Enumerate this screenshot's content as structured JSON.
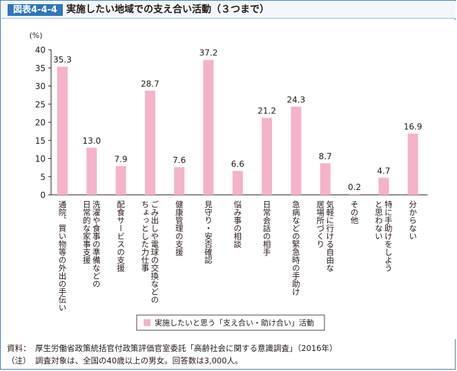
{
  "header": {
    "figure_number": "図表4-4-4",
    "title": "実施したい地域での支え合い活動（３つまで）"
  },
  "chart_data": {
    "type": "bar",
    "ylabel": "(%)",
    "ylim": [
      0,
      40
    ],
    "yticks": [
      0,
      5,
      10,
      15,
      20,
      25,
      30,
      35,
      40
    ],
    "grid": false,
    "legend_position": "bottom-center",
    "categories": [
      "通院、買い物等の外出の手伝い",
      "洗濯や食事の準備などの日常的な家事支援",
      "配食サービスの支援",
      "ごみ出しや電球の交換などのちょっとした力仕事",
      "健康管理の支援",
      "見守り・安否確認",
      "悩み事の相談",
      "日常会話の相手",
      "急病などの緊急時の手助け",
      "気軽に行ける自由な居場所づくり",
      "その他",
      "特に手助けをしようと思わない",
      "分からない"
    ],
    "category_lines": [
      [
        "通院、買い物等の外出の手伝い"
      ],
      [
        "洗濯や食事の準備などの",
        "日常的な家事支援"
      ],
      [
        "配食サービスの支援"
      ],
      [
        "ごみ出しや電球の交換などの",
        "ちょっとした力仕事"
      ],
      [
        "健康管理の支援"
      ],
      [
        "見守り・安否確認"
      ],
      [
        "悩み事の相談"
      ],
      [
        "日常会話の相手"
      ],
      [
        "急病などの緊急時の手助け"
      ],
      [
        "気軽に行ける自由な",
        "居場所づくり"
      ],
      [
        "その他"
      ],
      [
        "特に手助けをしよう",
        "と思わない"
      ],
      [
        "分からない"
      ]
    ],
    "series": [
      {
        "name": "実施したいと思う「支え合い・助け合い」活動",
        "color": "#f5b2cb",
        "values": [
          35.3,
          13.0,
          7.9,
          28.7,
          7.6,
          37.2,
          6.6,
          21.2,
          24.3,
          8.7,
          0.2,
          4.7,
          16.9
        ],
        "labels": [
          "35.3",
          "13.0",
          "7.9",
          "28.7",
          "7.6",
          "37.2",
          "6.6",
          "21.2",
          "24.3",
          "8.7",
          "0.2",
          "4.7",
          "16.9"
        ]
      }
    ]
  },
  "footnotes": {
    "source_label": "資料：",
    "source_text": "厚生労働省政策統括官付政策評価官室委託「高齢社会に関する意識調査」（2016年）",
    "note_label": "（注）",
    "note_text": "調査対象は、全国の40歳以上の男女。回答数は3,000人。"
  }
}
